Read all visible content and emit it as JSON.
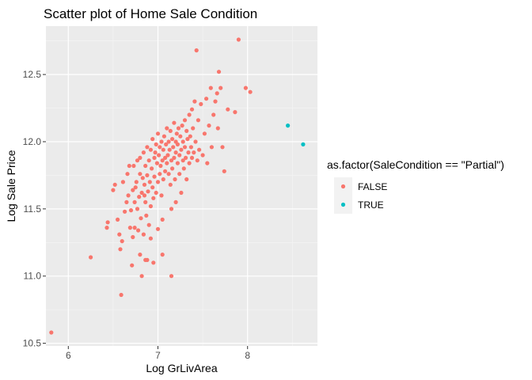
{
  "chart_data": {
    "type": "scatter",
    "title": "Scatter plot of Home Sale Condition",
    "xlabel": "Log GrLivArea",
    "ylabel": "Log Sale Price",
    "xlim": [
      5.75,
      8.78
    ],
    "ylim": [
      10.48,
      12.86
    ],
    "x_ticks": [
      6,
      7,
      8
    ],
    "y_ticks": [
      10.5,
      11.0,
      11.5,
      12.0,
      12.5
    ],
    "x_tick_labels": [
      "6",
      "7",
      "8"
    ],
    "y_tick_labels": [
      "10.5",
      "11.0",
      "11.5",
      "12.0",
      "12.5"
    ],
    "grid": true,
    "legend": {
      "title": "as.factor(SaleCondition == \"Partial\")",
      "position": "right",
      "entries": [
        {
          "label": "FALSE",
          "color": "#F8766D"
        },
        {
          "label": "TRUE",
          "color": "#00BFC4"
        }
      ]
    },
    "series": [
      {
        "name": "FALSE",
        "color": "#F8766D",
        "points": [
          [
            5.81,
            10.58
          ],
          [
            6.25,
            11.14
          ],
          [
            6.43,
            11.36
          ],
          [
            6.44,
            11.4
          ],
          [
            6.5,
            11.64
          ],
          [
            6.52,
            11.68
          ],
          [
            6.55,
            11.42
          ],
          [
            6.57,
            11.31
          ],
          [
            6.58,
            11.2
          ],
          [
            6.59,
            10.86
          ],
          [
            6.6,
            11.26
          ],
          [
            6.61,
            11.7
          ],
          [
            6.63,
            11.48
          ],
          [
            6.65,
            11.55
          ],
          [
            6.66,
            11.76
          ],
          [
            6.67,
            11.6
          ],
          [
            6.68,
            11.82
          ],
          [
            6.69,
            11.36
          ],
          [
            6.7,
            11.49
          ],
          [
            6.71,
            11.08
          ],
          [
            6.72,
            11.64
          ],
          [
            6.72,
            11.29
          ],
          [
            6.73,
            11.82
          ],
          [
            6.74,
            11.55
          ],
          [
            6.74,
            11.36
          ],
          [
            6.75,
            11.66
          ],
          [
            6.76,
            11.7
          ],
          [
            6.77,
            11.86
          ],
          [
            6.77,
            11.5
          ],
          [
            6.78,
            11.34
          ],
          [
            6.79,
            11.59
          ],
          [
            6.8,
            11.76
          ],
          [
            6.8,
            11.88
          ],
          [
            6.81,
            11.43
          ],
          [
            6.82,
            11.62
          ],
          [
            6.82,
            11.0
          ],
          [
            6.83,
            11.73
          ],
          [
            6.84,
            11.92
          ],
          [
            6.84,
            11.31
          ],
          [
            6.85,
            11.68
          ],
          [
            6.86,
            11.55
          ],
          [
            6.86,
            11.82
          ],
          [
            6.87,
            11.45
          ],
          [
            6.88,
            11.75
          ],
          [
            6.88,
            11.96
          ],
          [
            6.89,
            11.63
          ],
          [
            6.9,
            11.86
          ],
          [
            6.9,
            11.38
          ],
          [
            6.91,
            11.7
          ],
          [
            6.92,
            11.94
          ],
          [
            6.92,
            11.52
          ],
          [
            6.93,
            11.8
          ],
          [
            6.94,
            11.66
          ],
          [
            6.94,
            12.02
          ],
          [
            6.95,
            11.58
          ],
          [
            6.96,
            11.88
          ],
          [
            6.96,
            11.74
          ],
          [
            6.97,
            11.92
          ],
          [
            6.98,
            11.62
          ],
          [
            6.98,
            11.98
          ],
          [
            6.99,
            11.84
          ],
          [
            7.0,
            11.7
          ],
          [
            7.0,
            12.06
          ],
          [
            7.01,
            11.9
          ],
          [
            7.02,
            11.76
          ],
          [
            7.02,
            11.96
          ],
          [
            7.03,
            11.82
          ],
          [
            7.04,
            12.0
          ],
          [
            7.04,
            11.6
          ],
          [
            7.05,
            11.86
          ],
          [
            7.06,
            11.94
          ],
          [
            7.06,
            11.72
          ],
          [
            7.07,
            12.04
          ],
          [
            7.08,
            11.88
          ],
          [
            7.08,
            11.78
          ],
          [
            7.09,
            11.98
          ],
          [
            7.1,
            11.84
          ],
          [
            7.1,
            12.1
          ],
          [
            7.11,
            11.9
          ],
          [
            7.12,
            11.76
          ],
          [
            7.12,
            12.0
          ],
          [
            7.13,
            11.94
          ],
          [
            7.14,
            11.68
          ],
          [
            7.14,
            12.08
          ],
          [
            7.15,
            11.86
          ],
          [
            7.16,
            12.02
          ],
          [
            7.16,
            11.8
          ],
          [
            7.17,
            11.96
          ],
          [
            7.18,
            12.14
          ],
          [
            7.18,
            11.88
          ],
          [
            7.19,
            11.72
          ],
          [
            7.2,
            12.0
          ],
          [
            7.2,
            11.92
          ],
          [
            7.21,
            12.06
          ],
          [
            7.22,
            11.84
          ],
          [
            7.22,
            11.98
          ],
          [
            7.23,
            12.1
          ],
          [
            7.24,
            11.9
          ],
          [
            7.24,
            11.76
          ],
          [
            7.25,
            12.04
          ],
          [
            7.26,
            11.94
          ],
          [
            7.26,
            11.62
          ],
          [
            7.27,
            12.12
          ],
          [
            7.28,
            11.86
          ],
          [
            7.28,
            12.0
          ],
          [
            7.29,
            11.8
          ],
          [
            7.3,
            12.16
          ],
          [
            7.3,
            11.96
          ],
          [
            7.31,
            11.88
          ],
          [
            7.32,
            12.08
          ],
          [
            7.32,
            11.72
          ],
          [
            7.33,
            12.02
          ],
          [
            7.34,
            11.92
          ],
          [
            7.35,
            12.2
          ],
          [
            7.35,
            11.84
          ],
          [
            7.36,
            12.04
          ],
          [
            7.37,
            11.96
          ],
          [
            7.38,
            12.24
          ],
          [
            7.38,
            11.88
          ],
          [
            7.39,
            12.1
          ],
          [
            7.4,
            11.92
          ],
          [
            7.41,
            12.3
          ],
          [
            7.42,
            12.0
          ],
          [
            7.43,
            12.68
          ],
          [
            7.44,
            11.86
          ],
          [
            7.45,
            12.16
          ],
          [
            7.46,
            11.94
          ],
          [
            7.48,
            12.28
          ],
          [
            7.5,
            11.9
          ],
          [
            7.52,
            12.06
          ],
          [
            7.54,
            12.32
          ],
          [
            7.55,
            11.84
          ],
          [
            7.57,
            12.12
          ],
          [
            7.59,
            12.4
          ],
          [
            7.6,
            11.96
          ],
          [
            7.62,
            12.2
          ],
          [
            7.64,
            12.3
          ],
          [
            7.66,
            12.36
          ],
          [
            7.67,
            12.1
          ],
          [
            7.68,
            12.52
          ],
          [
            7.7,
            12.4
          ],
          [
            7.72,
            11.96
          ],
          [
            7.74,
            11.78
          ],
          [
            7.78,
            12.24
          ],
          [
            7.86,
            12.22
          ],
          [
            7.9,
            12.76
          ],
          [
            7.98,
            12.4
          ],
          [
            8.03,
            12.37
          ],
          [
            6.86,
            11.12
          ],
          [
            6.88,
            11.12
          ],
          [
            6.92,
            11.28
          ],
          [
            7.05,
            11.16
          ],
          [
            7.15,
            11.0
          ],
          [
            6.8,
            11.16
          ],
          [
            6.95,
            11.1
          ],
          [
            7.15,
            11.5
          ],
          [
            7.2,
            11.55
          ],
          [
            7.05,
            11.42
          ],
          [
            7.0,
            11.35
          ],
          [
            6.85,
            11.6
          ]
        ]
      },
      {
        "name": "TRUE",
        "color": "#00BFC4",
        "points": [
          [
            8.45,
            12.12
          ],
          [
            8.62,
            11.98
          ]
        ]
      }
    ]
  }
}
